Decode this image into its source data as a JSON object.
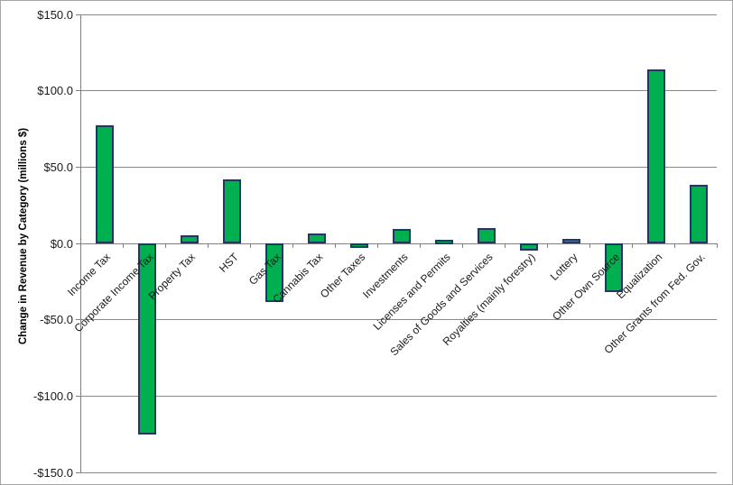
{
  "chart_data": {
    "type": "bar",
    "title": "",
    "xlabel": "",
    "ylabel": "Change in Revenue by Category (millions $)",
    "categories": [
      "Income Tax",
      "Corporate Income Tax",
      "Property Tax",
      "HST",
      "Gas Tax",
      "Cannabis Tax",
      "Other Taxes",
      "Investments",
      "Licenses and Permits",
      "Sales of Goods and Services",
      "Royalties (mainly forestry)",
      "Lottery",
      "Other Own Source",
      "Equalization",
      "Other Grants from Fed. Gov."
    ],
    "values": [
      77,
      -125,
      5,
      41.5,
      -38,
      6,
      -2,
      9,
      2,
      9.5,
      -4.5,
      2.5,
      -31.5,
      113.5,
      38
    ],
    "ylim": [
      -150,
      150
    ],
    "y_tick_step": 50,
    "y_ticks": [
      150,
      100,
      50,
      0,
      -50,
      -100,
      -150
    ],
    "y_tick_labels": [
      "$150.0",
      "$100.0",
      "$50.0",
      "$0.0",
      "-$50.0",
      "-$100.0",
      "-$150.0"
    ],
    "grid": "horizontal-major",
    "legend": "none",
    "colors": {
      "bar_fill": "#00B050",
      "bar_border": "#1F3864",
      "gridline": "#898989",
      "axis": "#7F7F7F",
      "background": "#FFFFFF",
      "frame_border": "#A6A6A6"
    }
  }
}
